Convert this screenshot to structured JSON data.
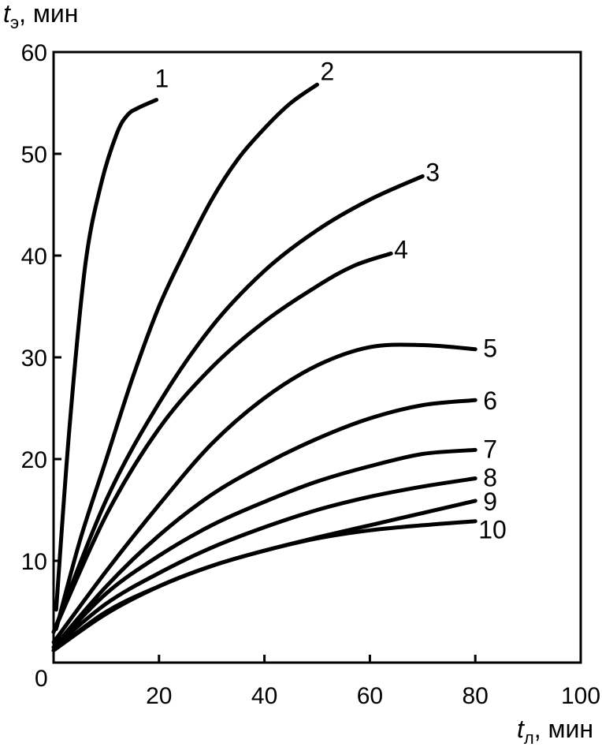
{
  "chart_data": {
    "type": "line",
    "title": "",
    "ylabel": {
      "var": "t",
      "sub": "э",
      "unit": ", мин"
    },
    "xlabel": {
      "var": "t",
      "sub": "л",
      "unit": ", мин"
    },
    "origin_label": "0",
    "xlim": [
      0,
      100
    ],
    "ylim": [
      0,
      60
    ],
    "x_ticks": [
      20,
      40,
      60,
      80,
      100
    ],
    "y_ticks": [
      10,
      20,
      30,
      40,
      50,
      60
    ],
    "grid": false,
    "series": [
      {
        "name": "1",
        "points": [
          [
            0.5,
            5.2
          ],
          [
            3,
            23
          ],
          [
            6,
            39
          ],
          [
            9,
            47
          ],
          [
            12,
            52
          ],
          [
            14,
            53.8
          ],
          [
            16,
            54.5
          ],
          [
            19.5,
            55.3
          ]
        ]
      },
      {
        "name": "2",
        "points": [
          [
            0.5,
            3.3
          ],
          [
            5,
            12
          ],
          [
            10,
            20
          ],
          [
            15,
            28
          ],
          [
            20,
            35
          ],
          [
            25,
            40.5
          ],
          [
            30,
            45.5
          ],
          [
            35,
            49.5
          ],
          [
            40,
            52.5
          ],
          [
            45,
            55
          ],
          [
            50,
            56.8
          ]
        ]
      },
      {
        "name": "3",
        "points": [
          [
            0,
            3
          ],
          [
            10,
            16
          ],
          [
            20,
            25.5
          ],
          [
            30,
            33
          ],
          [
            40,
            38.5
          ],
          [
            50,
            42.5
          ],
          [
            60,
            45.5
          ],
          [
            70,
            47.8
          ]
        ]
      },
      {
        "name": "4",
        "points": [
          [
            0,
            3
          ],
          [
            10,
            14.5
          ],
          [
            20,
            23
          ],
          [
            30,
            29
          ],
          [
            40,
            33.5
          ],
          [
            50,
            37
          ],
          [
            57,
            39
          ],
          [
            64,
            40.2
          ]
        ]
      },
      {
        "name": "5",
        "points": [
          [
            0,
            2
          ],
          [
            10,
            9
          ],
          [
            20,
            15.5
          ],
          [
            30,
            21.5
          ],
          [
            40,
            26
          ],
          [
            50,
            29.2
          ],
          [
            60,
            31
          ],
          [
            70,
            31.2
          ],
          [
            80,
            30.8
          ]
        ]
      },
      {
        "name": "6",
        "points": [
          [
            0,
            1.5
          ],
          [
            10,
            7.5
          ],
          [
            20,
            12.5
          ],
          [
            30,
            16.5
          ],
          [
            40,
            19.5
          ],
          [
            50,
            22
          ],
          [
            60,
            24
          ],
          [
            70,
            25.3
          ],
          [
            80,
            25.8
          ]
        ]
      },
      {
        "name": "7",
        "points": [
          [
            0,
            1.5
          ],
          [
            10,
            6.8
          ],
          [
            20,
            10.5
          ],
          [
            30,
            13.5
          ],
          [
            40,
            15.8
          ],
          [
            50,
            17.8
          ],
          [
            60,
            19.3
          ],
          [
            70,
            20.5
          ],
          [
            80,
            20.9
          ]
        ]
      },
      {
        "name": "8",
        "points": [
          [
            0,
            1.5
          ],
          [
            10,
            5.8
          ],
          [
            20,
            8.8
          ],
          [
            30,
            11.3
          ],
          [
            40,
            13.3
          ],
          [
            50,
            15
          ],
          [
            60,
            16.3
          ],
          [
            70,
            17.3
          ],
          [
            80,
            18.1
          ]
        ]
      },
      {
        "name": "9",
        "points": [
          [
            0,
            1.2
          ],
          [
            10,
            4.8
          ],
          [
            20,
            7.5
          ],
          [
            30,
            9.5
          ],
          [
            40,
            11
          ],
          [
            50,
            12.3
          ],
          [
            60,
            13.5
          ],
          [
            70,
            14.7
          ],
          [
            80,
            15.9
          ]
        ]
      },
      {
        "name": "10",
        "points": [
          [
            0,
            1.2
          ],
          [
            10,
            5
          ],
          [
            20,
            7.5
          ],
          [
            30,
            9.5
          ],
          [
            40,
            11
          ],
          [
            50,
            12.2
          ],
          [
            60,
            13
          ],
          [
            70,
            13.5
          ],
          [
            80,
            13.9
          ]
        ]
      }
    ]
  }
}
